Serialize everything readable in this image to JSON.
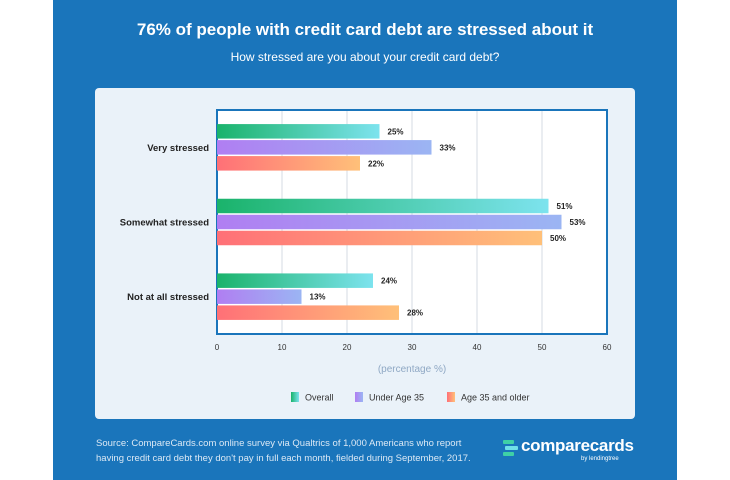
{
  "title": "76% of people with credit card debt are stressed about it",
  "subtitle": "How stressed are you about your credit card debt?",
  "source": {
    "line1": "Source: CompareCards.com online survey via Qualtrics of 1,000 Americans who report",
    "line2": "having credit card debt they don't pay in full each month, fielded during September, 2017."
  },
  "logo": {
    "text": "comparecards",
    "sub": "by lendingtree"
  },
  "colors": {
    "panel": "#1a75bb",
    "overall": [
      "#1ab36b",
      "#7de3ee"
    ],
    "under35": [
      "#b07ef2",
      "#9bb5f3"
    ],
    "age35plus": [
      "#ff7077",
      "#ffc079"
    ]
  },
  "chart_data": {
    "type": "bar",
    "orientation": "horizontal",
    "categories": [
      "Very stressed",
      "Somewhat stressed",
      "Not at all stressed"
    ],
    "series": [
      {
        "name": "Overall",
        "values": [
          25,
          51,
          24
        ]
      },
      {
        "name": "Under Age 35",
        "values": [
          33,
          53,
          13
        ]
      },
      {
        "name": "Age 35 and older",
        "values": [
          22,
          50,
          28
        ]
      }
    ],
    "xlabel": "(percentage %)",
    "xlim": [
      0,
      60
    ],
    "xticks": [
      0,
      10,
      20,
      30,
      40,
      50,
      60
    ],
    "value_suffix": "%",
    "grid": true,
    "legend_position": "bottom"
  }
}
